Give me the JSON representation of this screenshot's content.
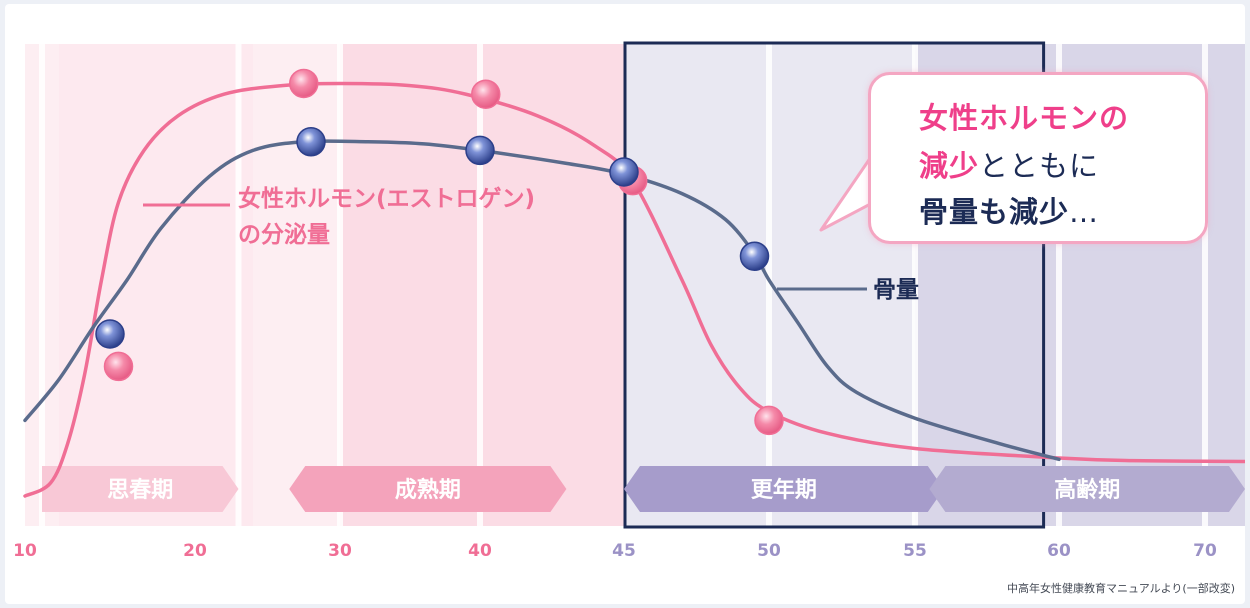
{
  "chart_data": {
    "type": "line",
    "x": [
      10,
      20,
      30,
      40,
      45,
      50,
      55,
      60,
      70
    ],
    "xlim": [
      10,
      72
    ],
    "x_tick_labels": [
      "10",
      "20",
      "30",
      "40",
      "45",
      "50",
      "55",
      "60",
      "70"
    ],
    "y_axis_shown": false,
    "grid": "vertical bands",
    "series": [
      {
        "name": "女性ホルモン(エストロゲン)の分泌量",
        "color": "#f06e95",
        "curve": [
          [
            10,
            0.0
          ],
          [
            11.5,
            0.03
          ],
          [
            12.5,
            0.12
          ],
          [
            13.5,
            0.28
          ],
          [
            14.5,
            0.5
          ],
          [
            15.5,
            0.68
          ],
          [
            17,
            0.8
          ],
          [
            19,
            0.88
          ],
          [
            22,
            0.93
          ],
          [
            26,
            0.95
          ],
          [
            30,
            0.955
          ],
          [
            35,
            0.95
          ],
          [
            39,
            0.93
          ],
          [
            42,
            0.88
          ],
          [
            44,
            0.81
          ],
          [
            45.3,
            0.73
          ],
          [
            47,
            0.5
          ],
          [
            48,
            0.35
          ],
          [
            49,
            0.25
          ],
          [
            50,
            0.195
          ],
          [
            52,
            0.145
          ],
          [
            55,
            0.11
          ],
          [
            60,
            0.088
          ],
          [
            65,
            0.082
          ],
          [
            72,
            0.08
          ]
        ],
        "markers": [
          [
            15.5,
            0.3
          ],
          [
            27.5,
            0.955
          ],
          [
            40.2,
            0.93
          ],
          [
            45.3,
            0.73
          ],
          [
            50,
            0.175
          ]
        ]
      },
      {
        "name": "骨量",
        "color": "#5a6b8c",
        "curve": [
          [
            10,
            0.175
          ],
          [
            12,
            0.27
          ],
          [
            14,
            0.39
          ],
          [
            16,
            0.5
          ],
          [
            18,
            0.62
          ],
          [
            21,
            0.74
          ],
          [
            24,
            0.8
          ],
          [
            27.5,
            0.82
          ],
          [
            32,
            0.82
          ],
          [
            36,
            0.815
          ],
          [
            40,
            0.8
          ],
          [
            43,
            0.77
          ],
          [
            45,
            0.745
          ],
          [
            47,
            0.7
          ],
          [
            48.5,
            0.64
          ],
          [
            49.5,
            0.56
          ],
          [
            50,
            0.5
          ],
          [
            51,
            0.4
          ],
          [
            52,
            0.3
          ],
          [
            53,
            0.24
          ],
          [
            55,
            0.18
          ],
          [
            58,
            0.12
          ],
          [
            60,
            0.085
          ]
        ],
        "markers": [
          [
            15,
            0.375
          ],
          [
            28,
            0.82
          ],
          [
            40,
            0.8
          ],
          [
            45,
            0.75
          ],
          [
            49.5,
            0.555
          ]
        ]
      }
    ],
    "life_stages": [
      {
        "label": "思春期",
        "from": 11,
        "to": 23
      },
      {
        "label": "成熟期",
        "from": 26.5,
        "to": 43
      },
      {
        "label": "更年期",
        "from": 45,
        "to": 56
      },
      {
        "label": "高齢期",
        "from": 55.5,
        "to": 72
      }
    ],
    "highlight_range": [
      45,
      59.5
    ],
    "annotations": {
      "hormone_line1": "女性ホルモン(エストロゲン)",
      "hormone_line2": "の分泌量",
      "bone": "骨量"
    },
    "callout": {
      "line1": "女性ホルモンの",
      "line2_pink": "減少",
      "line2_rest": "とともに",
      "line3_navy": "骨量も減少",
      "line3_rest": "…"
    },
    "source": "中高年女性健康教育マニュアルより(一部改変)"
  },
  "colors": {
    "hormone": "#f06e95",
    "bone": "#5a6b8c",
    "pink_zone": "#fde2ea",
    "purple_zone": "#e3e1ee",
    "highlight_border": "#1c2b55",
    "tick_pink": "#f06e95",
    "tick_purple": "#9b92c6"
  }
}
